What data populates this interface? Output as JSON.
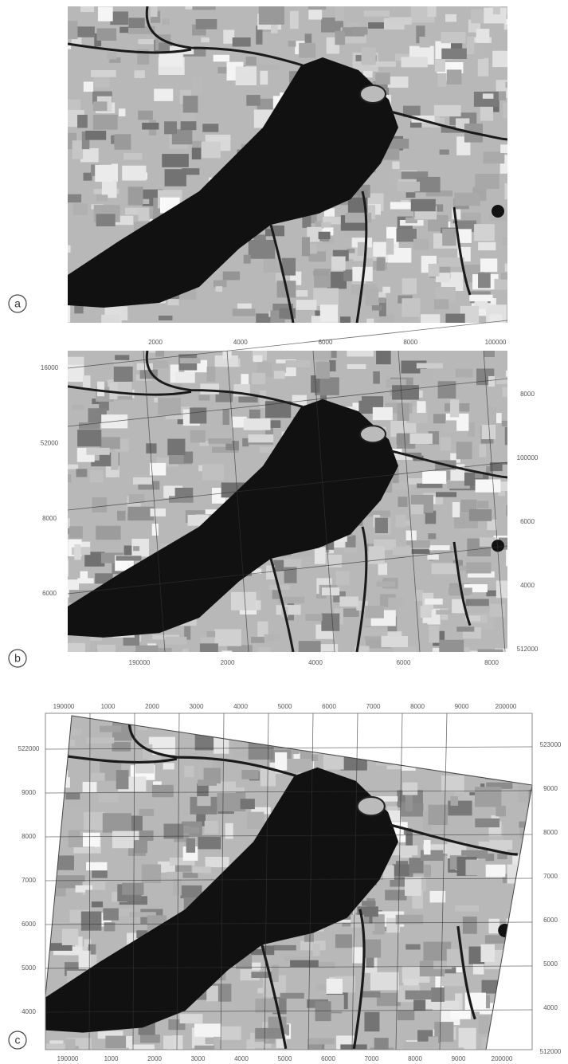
{
  "panels": [
    {
      "label": "a"
    },
    {
      "label": "b",
      "top_labels": [
        "2000",
        "4000",
        "6000",
        "8000",
        "100000"
      ],
      "left_labels": [
        "16000",
        "52000",
        "8000",
        "6000"
      ],
      "right_labels": [
        "8000",
        "100000",
        "6000",
        "4000",
        "512000"
      ],
      "bottom_labels": [
        "190000",
        "2000",
        "4000",
        "6000",
        "8000"
      ]
    },
    {
      "label": "c",
      "top_labels": [
        "190000",
        "1000",
        "2000",
        "3000",
        "4000",
        "5000",
        "6000",
        "7000",
        "8000",
        "9000",
        "200000"
      ],
      "left_labels": [
        "522000",
        "9000",
        "8000",
        "7000",
        "6000",
        "5000",
        "4000"
      ],
      "right_labels": [
        "523000",
        "9000",
        "8000",
        "7000",
        "6000",
        "5000",
        "4000",
        "512000"
      ],
      "bottom_labels": [
        "190000",
        "1000",
        "2000",
        "3000",
        "4000",
        "5000",
        "6000",
        "7000",
        "8000",
        "9000",
        "200000"
      ]
    }
  ]
}
